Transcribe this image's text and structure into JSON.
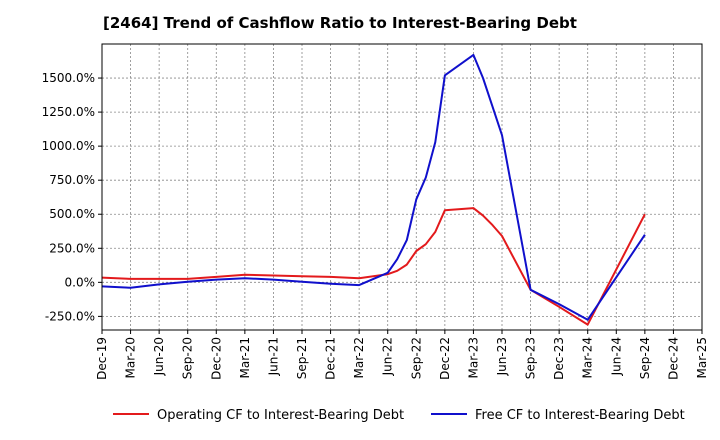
{
  "chart_data": {
    "type": "line",
    "title": "[2464]  Trend of Cashflow Ratio to Interest-Bearing Debt",
    "xlabel": "",
    "ylabel": "",
    "x_ticks": [
      "Dec-19",
      "Mar-20",
      "Jun-20",
      "Sep-20",
      "Dec-20",
      "Mar-21",
      "Jun-21",
      "Sep-21",
      "Dec-21",
      "Mar-22",
      "Jun-22",
      "Sep-22",
      "Dec-22",
      "Mar-23",
      "Jun-23",
      "Sep-23",
      "Dec-23",
      "Mar-24",
      "Jun-24",
      "Sep-24",
      "Dec-24",
      "Mar-25"
    ],
    "y_ticks": [
      {
        "value": 1500,
        "label": "1500.0%"
      },
      {
        "value": 1250,
        "label": "1250.0%"
      },
      {
        "value": 1000,
        "label": "1000.0%"
      },
      {
        "value": 750,
        "label": "750.0%"
      },
      {
        "value": 500,
        "label": "500.0%"
      },
      {
        "value": 250,
        "label": "250.0%"
      },
      {
        "value": 0,
        "label": "0.0%"
      },
      {
        "value": -250,
        "label": "-250.0%"
      }
    ],
    "ylim": [
      -350,
      1750
    ],
    "xlim": [
      "Dec-19",
      "Mar-25"
    ],
    "grid": true,
    "legend_position": "bottom",
    "series": [
      {
        "name": "Operating CF to Interest-Bearing Debt",
        "color": "#e31a1c",
        "points": [
          {
            "x": "Dec-19",
            "y": 35
          },
          {
            "x": "Mar-20",
            "y": 25
          },
          {
            "x": "Jun-20",
            "y": 25
          },
          {
            "x": "Sep-20",
            "y": 25
          },
          {
            "x": "Dec-20",
            "y": 40
          },
          {
            "x": "Mar-21",
            "y": 55
          },
          {
            "x": "Jun-21",
            "y": 50
          },
          {
            "x": "Sep-21",
            "y": 45
          },
          {
            "x": "Dec-21",
            "y": 40
          },
          {
            "x": "Mar-22",
            "y": 30
          },
          {
            "x": "Jun-22",
            "y": 60
          },
          {
            "x": "Jul-22",
            "y": 85
          },
          {
            "x": "Aug-22",
            "y": 130
          },
          {
            "x": "Sep-22",
            "y": 230
          },
          {
            "x": "Oct-22",
            "y": 280
          },
          {
            "x": "Nov-22",
            "y": 370
          },
          {
            "x": "Dec-22",
            "y": 530
          },
          {
            "x": "Mar-23",
            "y": 545
          },
          {
            "x": "Apr-23",
            "y": 490
          },
          {
            "x": "May-23",
            "y": 420
          },
          {
            "x": "Jun-23",
            "y": 340
          },
          {
            "x": "Sep-23",
            "y": -55
          },
          {
            "x": "Dec-23",
            "y": -180
          },
          {
            "x": "Mar-24",
            "y": -310
          },
          {
            "x": "Sep-24",
            "y": 500
          }
        ]
      },
      {
        "name": "Free CF to Interest-Bearing Debt",
        "color": "#1010cc",
        "points": [
          {
            "x": "Dec-19",
            "y": -30
          },
          {
            "x": "Mar-20",
            "y": -40
          },
          {
            "x": "Jun-20",
            "y": -15
          },
          {
            "x": "Sep-20",
            "y": 5
          },
          {
            "x": "Dec-20",
            "y": 20
          },
          {
            "x": "Mar-21",
            "y": 30
          },
          {
            "x": "Jun-21",
            "y": 20
          },
          {
            "x": "Sep-21",
            "y": 5
          },
          {
            "x": "Dec-21",
            "y": -10
          },
          {
            "x": "Mar-22",
            "y": -20
          },
          {
            "x": "Jun-22",
            "y": 70
          },
          {
            "x": "Jul-22",
            "y": 170
          },
          {
            "x": "Aug-22",
            "y": 310
          },
          {
            "x": "Sep-22",
            "y": 610
          },
          {
            "x": "Oct-22",
            "y": 770
          },
          {
            "x": "Nov-22",
            "y": 1030
          },
          {
            "x": "Dec-22",
            "y": 1520
          },
          {
            "x": "Mar-23",
            "y": 1670
          },
          {
            "x": "Apr-23",
            "y": 1500
          },
          {
            "x": "May-23",
            "y": 1290
          },
          {
            "x": "Jun-23",
            "y": 1080
          },
          {
            "x": "Sep-23",
            "y": -55
          },
          {
            "x": "Dec-23",
            "y": -160
          },
          {
            "x": "Mar-24",
            "y": -275
          },
          {
            "x": "Sep-24",
            "y": 350
          }
        ]
      }
    ]
  }
}
